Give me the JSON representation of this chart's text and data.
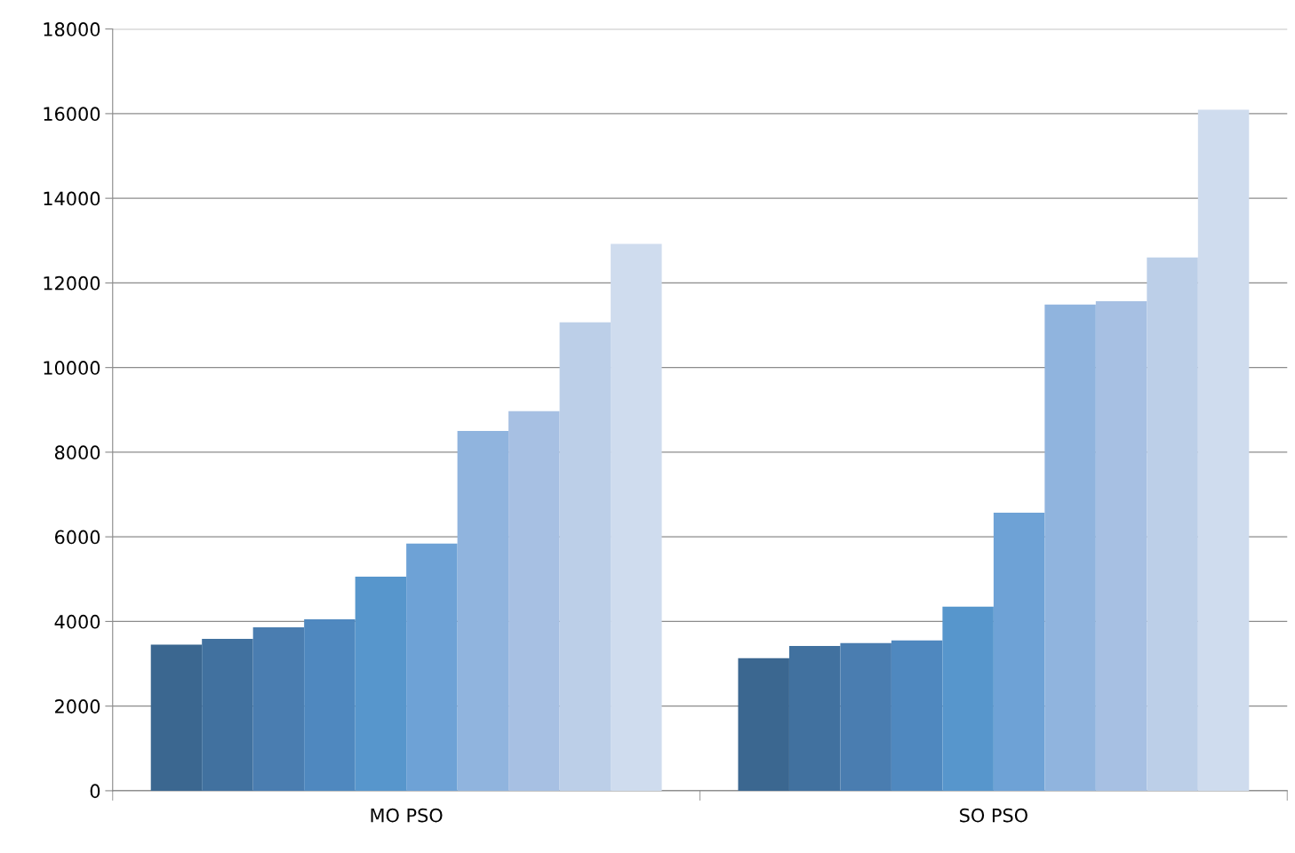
{
  "chart_data": {
    "type": "bar",
    "categories": [
      "MO PSO",
      "SO PSO"
    ],
    "series": [
      {
        "color": "#3b6790",
        "values": [
          3450,
          3130
        ]
      },
      {
        "color": "#41719f",
        "values": [
          3590,
          3420
        ]
      },
      {
        "color": "#4a7db0",
        "values": [
          3860,
          3490
        ]
      },
      {
        "color": "#4f88bf",
        "values": [
          4050,
          3550
        ]
      },
      {
        "color": "#5796cc",
        "values": [
          5060,
          4350
        ]
      },
      {
        "color": "#6ea2d6",
        "values": [
          5840,
          6570
        ]
      },
      {
        "color": "#90b4de",
        "values": [
          8500,
          11490
        ]
      },
      {
        "color": "#a7c0e3",
        "values": [
          8970,
          11570
        ]
      },
      {
        "color": "#bccfe8",
        "values": [
          11070,
          12600
        ]
      },
      {
        "color": "#cfdcee",
        "values": [
          12920,
          16090
        ]
      }
    ],
    "ylim": [
      0,
      18000
    ],
    "yticks": [
      0,
      2000,
      4000,
      6000,
      8000,
      10000,
      12000,
      14000,
      16000,
      18000
    ],
    "grid": "y"
  }
}
